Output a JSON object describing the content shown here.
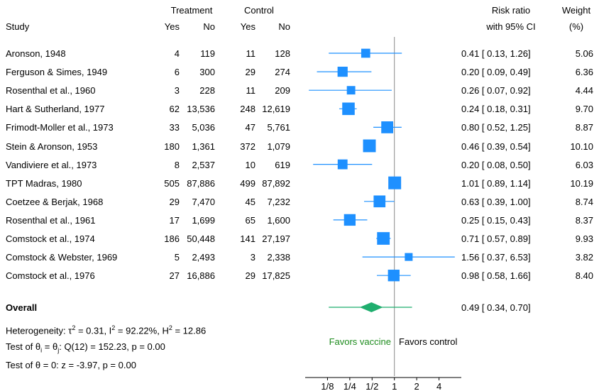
{
  "chart_data": {
    "type": "forest",
    "header": {
      "group1": "Treatment",
      "group2": "Control",
      "study": "Study",
      "yes1": "Yes",
      "no1": "No",
      "yes2": "Yes",
      "no2": "No",
      "rr_line1": "Risk ratio",
      "rr_line2": "with 95% CI",
      "weight_line1": "Weight",
      "weight_line2": "(%)"
    },
    "studies": [
      {
        "name": "Aronson, 1948",
        "t_yes": "4",
        "t_no": "119",
        "c_yes": "11",
        "c_no": "128",
        "rr": 0.41,
        "lo": 0.13,
        "hi": 1.26,
        "ci_text": "0.41 [ 0.13,  1.26]",
        "weight": 5.06,
        "weight_text": "5.06"
      },
      {
        "name": "Ferguson & Simes, 1949",
        "t_yes": "6",
        "t_no": "300",
        "c_yes": "29",
        "c_no": "274",
        "rr": 0.2,
        "lo": 0.09,
        "hi": 0.49,
        "ci_text": "0.20 [ 0.09,  0.49]",
        "weight": 6.36,
        "weight_text": "6.36"
      },
      {
        "name": "Rosenthal et al., 1960",
        "t_yes": "3",
        "t_no": "228",
        "c_yes": "11",
        "c_no": "209",
        "rr": 0.26,
        "lo": 0.07,
        "hi": 0.92,
        "ci_text": "0.26 [ 0.07,  0.92]",
        "weight": 4.44,
        "weight_text": "4.44"
      },
      {
        "name": "Hart & Sutherland, 1977",
        "t_yes": "62",
        "t_no": "13,536",
        "c_yes": "248",
        "c_no": "12,619",
        "rr": 0.24,
        "lo": 0.18,
        "hi": 0.31,
        "ci_text": "0.24 [ 0.18,  0.31]",
        "weight": 9.7,
        "weight_text": "9.70"
      },
      {
        "name": "Frimodt-Moller et al., 1973",
        "t_yes": "33",
        "t_no": "5,036",
        "c_yes": "47",
        "c_no": "5,761",
        "rr": 0.8,
        "lo": 0.52,
        "hi": 1.25,
        "ci_text": "0.80 [ 0.52,  1.25]",
        "weight": 8.87,
        "weight_text": "8.87"
      },
      {
        "name": "Stein & Aronson, 1953",
        "t_yes": "180",
        "t_no": "1,361",
        "c_yes": "372",
        "c_no": "1,079",
        "rr": 0.46,
        "lo": 0.39,
        "hi": 0.54,
        "ci_text": "0.46 [ 0.39,  0.54]",
        "weight": 10.1,
        "weight_text": "10.10"
      },
      {
        "name": "Vandiviere et al., 1973",
        "t_yes": "8",
        "t_no": "2,537",
        "c_yes": "10",
        "c_no": "619",
        "rr": 0.2,
        "lo": 0.08,
        "hi": 0.5,
        "ci_text": "0.20 [ 0.08,  0.50]",
        "weight": 6.03,
        "weight_text": "6.03"
      },
      {
        "name": "TPT Madras, 1980",
        "t_yes": "505",
        "t_no": "87,886",
        "c_yes": "499",
        "c_no": "87,892",
        "rr": 1.01,
        "lo": 0.89,
        "hi": 1.14,
        "ci_text": "1.01 [ 0.89,  1.14]",
        "weight": 10.19,
        "weight_text": "10.19"
      },
      {
        "name": "Coetzee & Berjak, 1968",
        "t_yes": "29",
        "t_no": "7,470",
        "c_yes": "45",
        "c_no": "7,232",
        "rr": 0.63,
        "lo": 0.39,
        "hi": 1.0,
        "ci_text": "0.63 [ 0.39,  1.00]",
        "weight": 8.74,
        "weight_text": "8.74"
      },
      {
        "name": "Rosenthal et al., 1961",
        "t_yes": "17",
        "t_no": "1,699",
        "c_yes": "65",
        "c_no": "1,600",
        "rr": 0.25,
        "lo": 0.15,
        "hi": 0.43,
        "ci_text": "0.25 [ 0.15,  0.43]",
        "weight": 8.37,
        "weight_text": "8.37"
      },
      {
        "name": "Comstock et al., 1974",
        "t_yes": "186",
        "t_no": "50,448",
        "c_yes": "141",
        "c_no": "27,197",
        "rr": 0.71,
        "lo": 0.57,
        "hi": 0.89,
        "ci_text": "0.71 [ 0.57,  0.89]",
        "weight": 9.93,
        "weight_text": "9.93"
      },
      {
        "name": "Comstock & Webster, 1969",
        "t_yes": "5",
        "t_no": "2,493",
        "c_yes": "3",
        "c_no": "2,338",
        "rr": 1.56,
        "lo": 0.37,
        "hi": 6.53,
        "ci_text": "1.56 [ 0.37,  6.53]",
        "weight": 3.82,
        "weight_text": "3.82"
      },
      {
        "name": "Comstock et al., 1976",
        "t_yes": "27",
        "t_no": "16,886",
        "c_yes": "29",
        "c_no": "17,825",
        "rr": 0.98,
        "lo": 0.58,
        "hi": 1.66,
        "ci_text": "0.98 [ 0.58,  1.66]",
        "weight": 8.4,
        "weight_text": "8.40"
      }
    ],
    "overall": {
      "label": "Overall",
      "rr": 0.49,
      "lo": 0.34,
      "hi": 0.7,
      "ci_text": "0.49 [ 0.34,  0.70]",
      "pred_lo": 0.13,
      "pred_hi": 1.73
    },
    "stats": {
      "heterogeneity": {
        "prefix": "Heterogeneity: ",
        "tau_sym": "τ",
        "tau_val": " = 0.31, ",
        "i_sym": "I",
        "i_val": " = 92.22%, ",
        "h_sym": "H",
        "h_val": " = 12.86"
      },
      "test_theta_eq": {
        "prefix": "Test of ",
        "theta_i": "θ",
        "i_sub": "i",
        "eq": " = ",
        "theta_j": "θ",
        "j_sub": "j",
        "rest": ": Q(12) = 152.23, p = 0.00"
      },
      "test_theta_zero": "Test of θ = 0: z = -3.97, p = 0.00"
    },
    "favors_left": "Favors vaccine",
    "favors_right": "Favors control",
    "x_scale": "log",
    "x_range": [
      0.0625,
      8
    ],
    "x_ticks": [
      0.125,
      0.25,
      0.5,
      1,
      2,
      4
    ],
    "x_tick_labels": [
      "1/8",
      "1/4",
      "1/2",
      "1",
      "2",
      "4"
    ],
    "reference_value": 1,
    "colors": {
      "study": "#1E90FF",
      "overall": "#1FAE6E",
      "favors_left": "#1E8C1E",
      "reference": "#888888",
      "text": "#000000"
    }
  }
}
